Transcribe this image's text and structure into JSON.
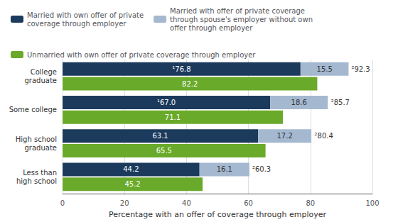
{
  "chart_data": {
    "type": "bar",
    "orientation": "horizontal",
    "categories": [
      "College\ngraduate",
      "Some college",
      "High school\ngraduate",
      "Less than\nhigh school"
    ],
    "series": [
      {
        "name": "Married with own offer of private\ncoverage through employer",
        "color": "#1b3a5c",
        "values": [
          76.8,
          67.0,
          63.1,
          44.2
        ],
        "value_labels": [
          "¹76.8",
          "¹67.0",
          "63.1",
          "44.2"
        ],
        "stacked": true
      },
      {
        "name": "Married with offer of private coverage\nthrough spouse's employer without own\noffer through employer",
        "color": "#a4b8d0",
        "values": [
          15.5,
          18.6,
          17.2,
          16.1
        ],
        "stacked": true
      },
      {
        "name": "Unmarried with own offer of private coverage through employer",
        "color": "#6aaa2a",
        "values": [
          82.2,
          71.1,
          65.5,
          45.2
        ]
      }
    ],
    "stack_totals": [
      92.3,
      85.7,
      80.4,
      60.3
    ],
    "stack_total_labels": [
      "²92.3",
      "²85.7",
      "²80.4",
      "²60.3"
    ],
    "xlabel": "Percentage with an offer of coverage through employer",
    "xlim": [
      0,
      100
    ],
    "xticks": [
      0,
      20,
      40,
      60,
      80,
      100
    ],
    "grid": true,
    "data_labels": true,
    "legend": "top"
  }
}
